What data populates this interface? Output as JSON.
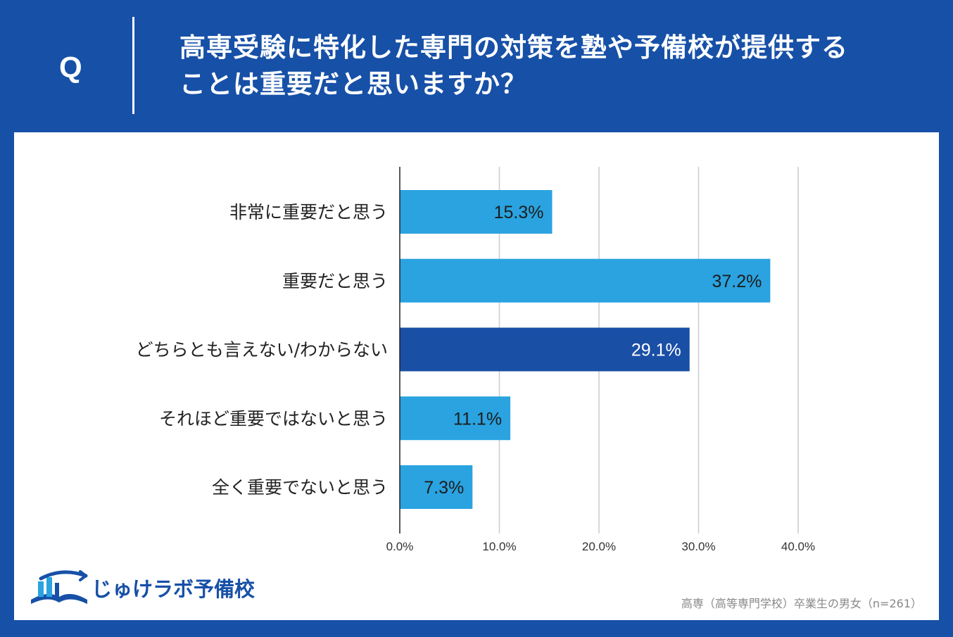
{
  "header": {
    "q_label": "Q",
    "question_line1": "高専受験に特化した専門の対策を塾や予備校が提供する",
    "question_line2": "ことは重要だと思いますか？"
  },
  "brand": {
    "name": "じゅけラボ予備校"
  },
  "footnote": "高専（高等専門学校）卒業生の男女（n=261）",
  "colors": {
    "background": "#1750a7",
    "bar": "#2aa3e0",
    "bar_highlight": "#1a4fa6"
  },
  "chart_data": {
    "type": "bar",
    "orientation": "horizontal",
    "title": "",
    "categories": [
      "非常に重要だと思う",
      "重要だと思う",
      "どちらとも言えない/わからない",
      "それほど重要ではないと思う",
      "全く重要でないと思う"
    ],
    "values": [
      15.3,
      37.2,
      29.1,
      11.1,
      7.3
    ],
    "value_labels": [
      "15.3%",
      "37.2%",
      "29.1%",
      "11.1%",
      "7.3%"
    ],
    "highlight_index": 2,
    "xlim": [
      0,
      40
    ],
    "xticks": [
      0,
      10,
      20,
      30,
      40
    ],
    "xtick_labels": [
      "0.0%",
      "10.0%",
      "20.0%",
      "30.0%",
      "40.0%"
    ],
    "grid": true
  }
}
